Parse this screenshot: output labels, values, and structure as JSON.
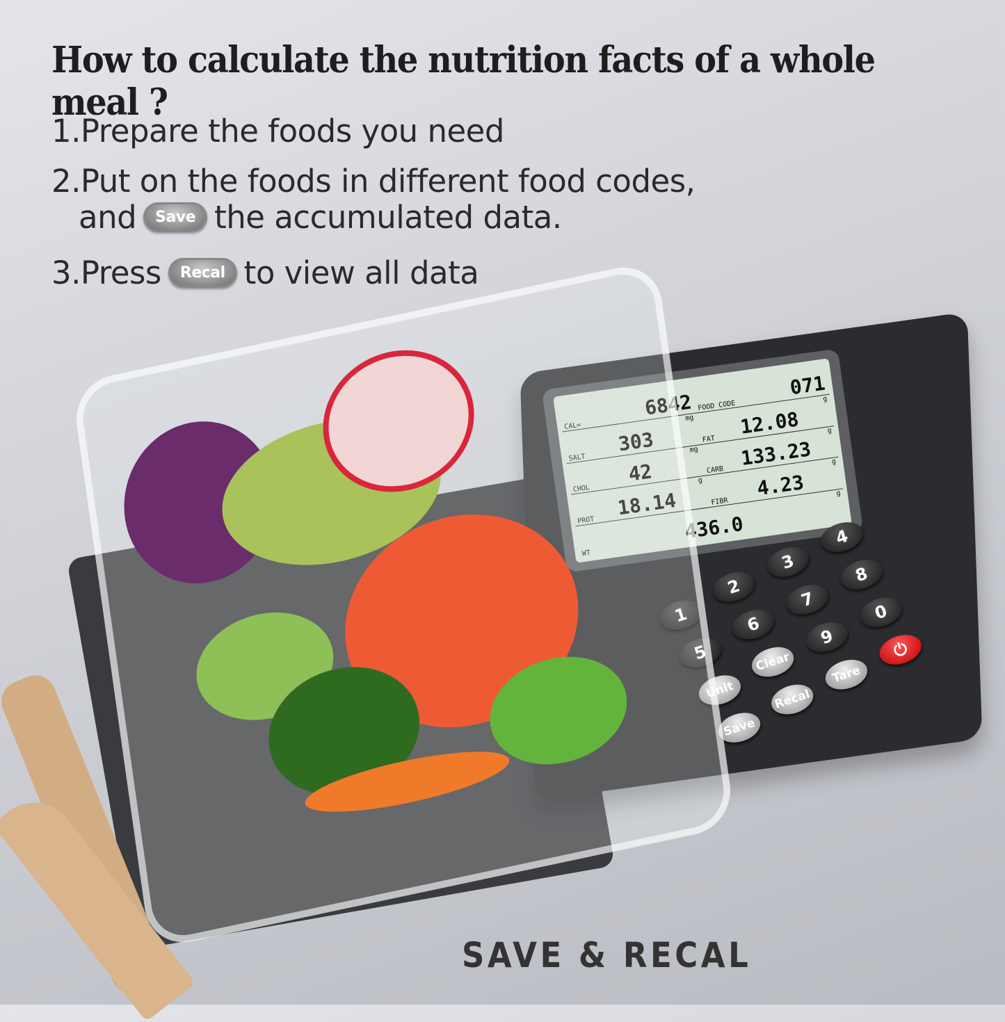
{
  "headline": "How to calculate the nutrition facts of a whole meal ?",
  "steps": {
    "s1": "1.Prepare the foods you need",
    "s2a": "2.Put on the foods in different food codes,",
    "s2b_pre": "and",
    "s2b_button": "Save",
    "s2b_post": "the accumulated data.",
    "s3_pre": "3.Press",
    "s3_button": "Recal",
    "s3_post": "to view all data"
  },
  "display": {
    "cal": {
      "label": "CAL=",
      "value": "6842"
    },
    "food_code": {
      "label": "FOOD CODE",
      "value": "071"
    },
    "salt": {
      "label": "SALT",
      "value": "303",
      "unit": "mg"
    },
    "fat": {
      "label": "FAT",
      "value": "12.08",
      "unit": "g"
    },
    "chol": {
      "label": "CHOL",
      "value": "42",
      "unit": "mg"
    },
    "carb": {
      "label": "CARB",
      "value": "133.23",
      "unit": "g"
    },
    "prot": {
      "label": "PROT",
      "value": "18.14",
      "unit": "g"
    },
    "fibr": {
      "label": "FIBR",
      "value": "4.23",
      "unit": "g"
    },
    "wt": {
      "label": "WT",
      "value": "436.0",
      "unit": "g"
    }
  },
  "keypad": [
    "1",
    "2",
    "3",
    "4",
    "5",
    "6",
    "7",
    "8",
    "9",
    "0",
    "Unit",
    "Clear",
    "Save",
    "Recal",
    "Tare"
  ],
  "power_icon": "power-icon",
  "footer": "SAVE & RECAL",
  "colors": {
    "power": "#e02020",
    "lcd": "#d7e3d6",
    "scale": "#2b2c2f"
  }
}
